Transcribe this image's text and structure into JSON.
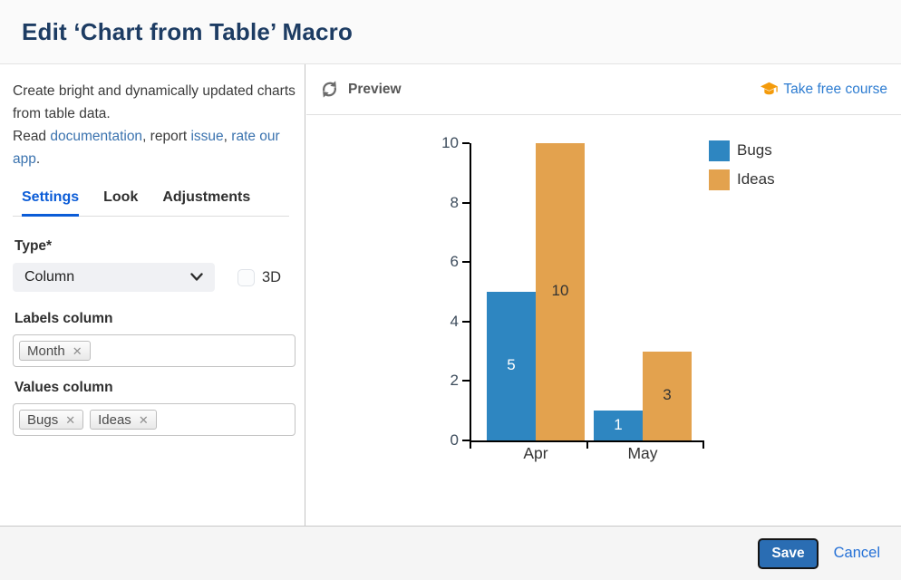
{
  "header": {
    "title": "Edit ‘Chart from Table’ Macro"
  },
  "sidebar": {
    "description": {
      "intro": "Create bright and dynamically updated charts from table data.",
      "read_prefix": "Read ",
      "link_documentation": "documentation",
      "sep_report": ", report ",
      "link_issue": "issue",
      "sep_comma": ", ",
      "link_rate": "rate our app",
      "period": "."
    },
    "tabs": [
      {
        "label": "Settings",
        "active": true
      },
      {
        "label": "Look",
        "active": false
      },
      {
        "label": "Adjustments",
        "active": false
      }
    ],
    "fields": {
      "type_label": "Type*",
      "type_value": "Column",
      "checkbox_3d_label": "3D",
      "checkbox_3d_checked": false,
      "labels_column_label": "Labels column",
      "labels_tags": [
        "Month"
      ],
      "values_column_label": "Values column",
      "values_tags": [
        "Bugs",
        "Ideas"
      ]
    }
  },
  "preview": {
    "title": "Preview",
    "course_link": "Take free course"
  },
  "footer": {
    "save_label": "Save",
    "cancel_label": "Cancel"
  },
  "icons": {
    "tag_remove_glyph": "✕",
    "refresh": "sync-arrows",
    "course": "graduation-cap",
    "select_arrow": "chevron-down"
  },
  "colors": {
    "accent_tab_blue": "#0b5cd7",
    "link_blue": "#3b73af",
    "course_link_blue": "#2d7cd1",
    "save_button_bg": "#2a6db3",
    "title_navy": "#1d3c63",
    "series_bugs": "#2e86c1",
    "series_ideas": "#e3a24e"
  },
  "chart_data": {
    "type": "bar",
    "title": "",
    "categories": [
      "Apr",
      "May"
    ],
    "series": [
      {
        "name": "Bugs",
        "color": "#2e86c1",
        "label_color": "#ffffff",
        "values": [
          5,
          1
        ]
      },
      {
        "name": "Ideas",
        "color": "#e3a24e",
        "label_color": "#333333",
        "values": [
          10,
          3
        ]
      }
    ],
    "ylim": [
      0,
      10
    ],
    "ytick_step": 2,
    "grid": false,
    "legend_position": "top-right",
    "data_labels": true,
    "xlabel": "",
    "ylabel": ""
  }
}
